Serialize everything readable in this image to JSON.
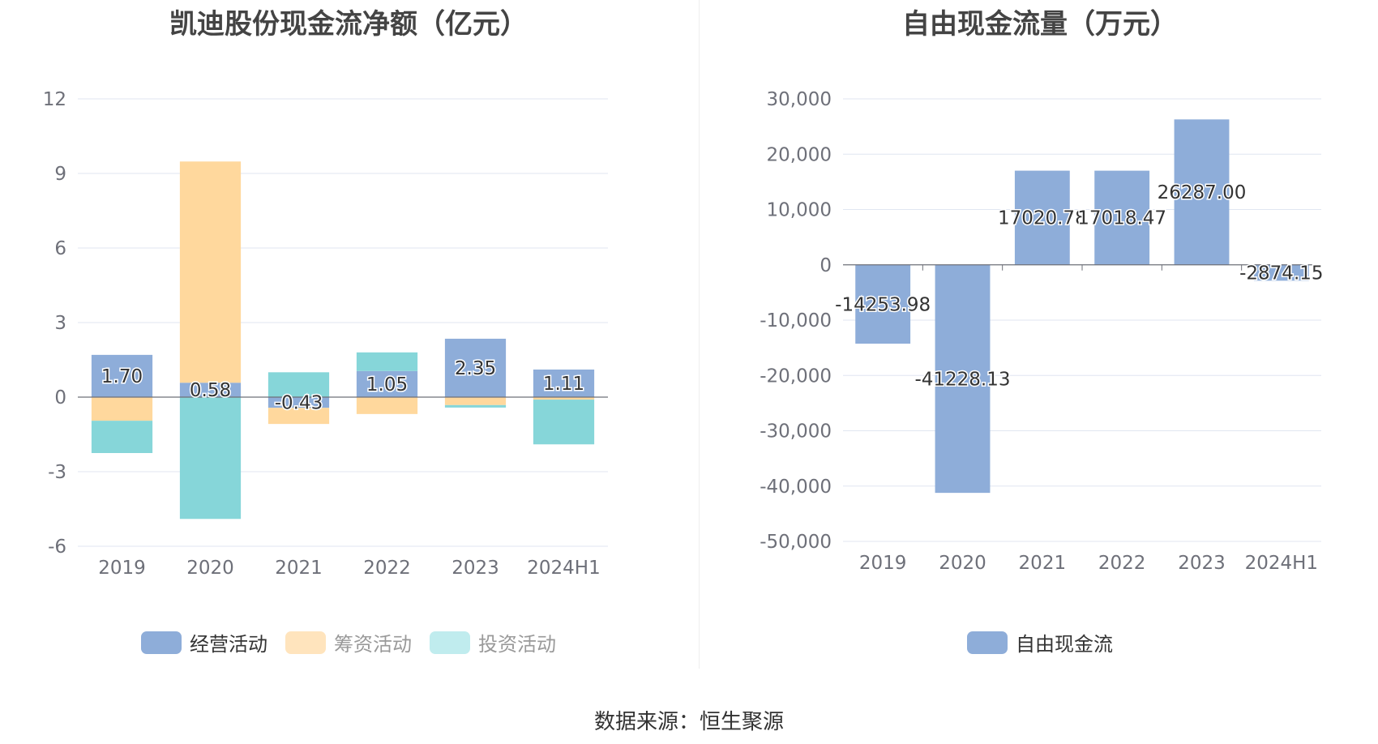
{
  "colors": {
    "operating": "#8eadd9",
    "financing": "#ffd89d",
    "investing": "#86d6d9",
    "fcf": "#8eadd9",
    "grid": "#e0e6f1",
    "axis": "#6e7079"
  },
  "source_text": "数据来源：恒生聚源",
  "chart_data": [
    {
      "type": "bar",
      "stacked": true,
      "title": "凯迪股份现金流净额（亿元）",
      "categories": [
        "2019",
        "2020",
        "2021",
        "2022",
        "2023",
        "2024H1"
      ],
      "ylim": [
        -6,
        12
      ],
      "yticks": [
        12,
        9,
        6,
        3,
        0,
        -3,
        -6
      ],
      "ytick_labels": [
        "12",
        "9",
        "6",
        "3",
        "0",
        "-3",
        "-6"
      ],
      "grid": true,
      "legend_position": "bottom",
      "series": [
        {
          "name": "经营活动",
          "values": [
            1.7,
            0.58,
            -0.43,
            1.05,
            2.35,
            1.11
          ],
          "labels": [
            "1.70",
            "0.58",
            "-0.43",
            "1.05",
            "2.35",
            "1.11"
          ]
        },
        {
          "name": "筹资活动",
          "values": [
            -0.95,
            8.9,
            -0.65,
            -0.68,
            -0.32,
            -0.1
          ]
        },
        {
          "name": "投资活动",
          "values": [
            -1.3,
            -4.9,
            1.0,
            0.75,
            -0.1,
            -1.8
          ]
        }
      ]
    },
    {
      "type": "bar",
      "title": "自由现金流量（万元）",
      "categories": [
        "2019",
        "2020",
        "2021",
        "2022",
        "2023",
        "2024H1"
      ],
      "ylim": [
        -50000,
        30000
      ],
      "yticks": [
        30000,
        20000,
        10000,
        0,
        -10000,
        -20000,
        -30000,
        -40000,
        -50000
      ],
      "ytick_labels": [
        "30,000",
        "20,000",
        "10,000",
        "0",
        "-10,000",
        "-20,000",
        "-30,000",
        "-40,000",
        "-50,000"
      ],
      "grid": true,
      "legend_position": "bottom",
      "series": [
        {
          "name": "自由现金流",
          "values": [
            -14253.98,
            -41228.13,
            17020.78,
            17018.47,
            26287.0,
            -2874.15
          ],
          "labels": [
            "-14253.98",
            "-41228.13",
            "17020.78",
            "17018.47",
            "26287.00",
            "-2874.15"
          ]
        }
      ]
    }
  ]
}
